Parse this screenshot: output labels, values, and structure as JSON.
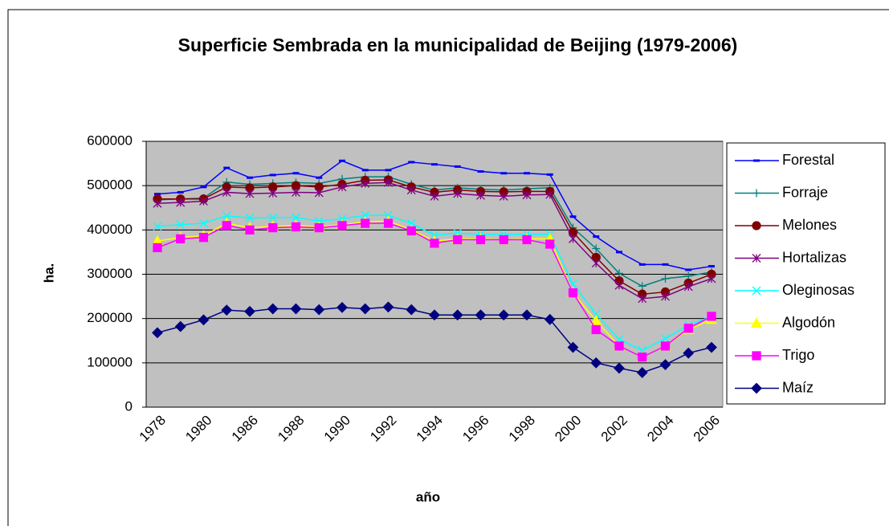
{
  "chart_data": {
    "type": "line",
    "title": "Superficie Sembrada en la municipalidad de Beijing (1979-2006)",
    "xlabel": "año",
    "ylabel": "ha.",
    "categories": [
      "1978",
      null,
      "1980",
      null,
      "1986",
      null,
      "1988",
      null,
      "1990",
      null,
      "1992",
      null,
      "1994",
      null,
      "1996",
      null,
      "1998",
      null,
      "2000",
      null,
      "2002",
      null,
      "2004",
      null,
      "2006"
    ],
    "ylim": [
      0,
      600000
    ],
    "yticks": [
      0,
      100000,
      200000,
      300000,
      400000,
      500000,
      600000
    ],
    "grid": true,
    "series": [
      {
        "name": "Forestal",
        "color": "#0000ff",
        "marker": "dash",
        "values": [
          481000,
          485000,
          497000,
          540000,
          518000,
          524000,
          528000,
          518000,
          556000,
          535000,
          535000,
          553000,
          548000,
          543000,
          532000,
          528000,
          528000,
          525000,
          430000,
          385000,
          350000,
          322000,
          322000,
          310000,
          318000
        ]
      },
      {
        "name": "Forraje",
        "color": "#008080",
        "marker": "plus",
        "values": [
          468000,
          470000,
          472000,
          508000,
          503000,
          505000,
          507000,
          505000,
          515000,
          520000,
          520000,
          503000,
          490000,
          495000,
          492000,
          490000,
          493000,
          495000,
          405000,
          358000,
          302000,
          273000,
          290000,
          296000,
          305000
        ]
      },
      {
        "name": "Melones",
        "color": "#800000",
        "marker": "circle",
        "values": [
          470000,
          470000,
          470000,
          497000,
          495000,
          497000,
          500000,
          497000,
          503000,
          512000,
          513000,
          497000,
          485000,
          490000,
          487000,
          486000,
          487000,
          487000,
          395000,
          338000,
          285000,
          255000,
          260000,
          280000,
          300000
        ]
      },
      {
        "name": "Hortalizas",
        "color": "#800080",
        "marker": "star",
        "values": [
          460000,
          462000,
          465000,
          485000,
          482000,
          483000,
          485000,
          484000,
          497000,
          505000,
          507000,
          490000,
          476000,
          482000,
          478000,
          476000,
          479000,
          480000,
          380000,
          325000,
          275000,
          245000,
          250000,
          272000,
          290000
        ]
      },
      {
        "name": "Oleginosas",
        "color": "#00ffff",
        "marker": "x",
        "values": [
          408000,
          412000,
          415000,
          432000,
          427000,
          428000,
          428000,
          420000,
          425000,
          433000,
          433000,
          415000,
          388000,
          393000,
          390000,
          390000,
          390000,
          390000,
          278000,
          210000,
          153000,
          128000,
          155000,
          185000,
          205000
        ]
      },
      {
        "name": "Algodón",
        "color": "#ffff00",
        "marker": "triangle",
        "values": [
          375000,
          383000,
          387000,
          415000,
          405000,
          408000,
          410000,
          407000,
          412000,
          418000,
          420000,
          400000,
          375000,
          380000,
          380000,
          378000,
          380000,
          380000,
          258000,
          195000,
          138000,
          113000,
          138000,
          175000,
          198000
        ]
      },
      {
        "name": "Trigo",
        "color": "#ff00ff",
        "marker": "square",
        "values": [
          360000,
          380000,
          383000,
          410000,
          400000,
          405000,
          407000,
          405000,
          410000,
          415000,
          415000,
          398000,
          370000,
          378000,
          378000,
          378000,
          378000,
          368000,
          258000,
          175000,
          138000,
          113000,
          138000,
          178000,
          205000
        ]
      },
      {
        "name": "Maíz",
        "color": "#000080",
        "marker": "diamond",
        "values": [
          168000,
          182000,
          197000,
          219000,
          216000,
          222000,
          222000,
          220000,
          225000,
          222000,
          226000,
          220000,
          208000,
          208000,
          208000,
          208000,
          208000,
          198000,
          135000,
          100000,
          88000,
          78000,
          96000,
          122000,
          135000
        ]
      }
    ]
  }
}
